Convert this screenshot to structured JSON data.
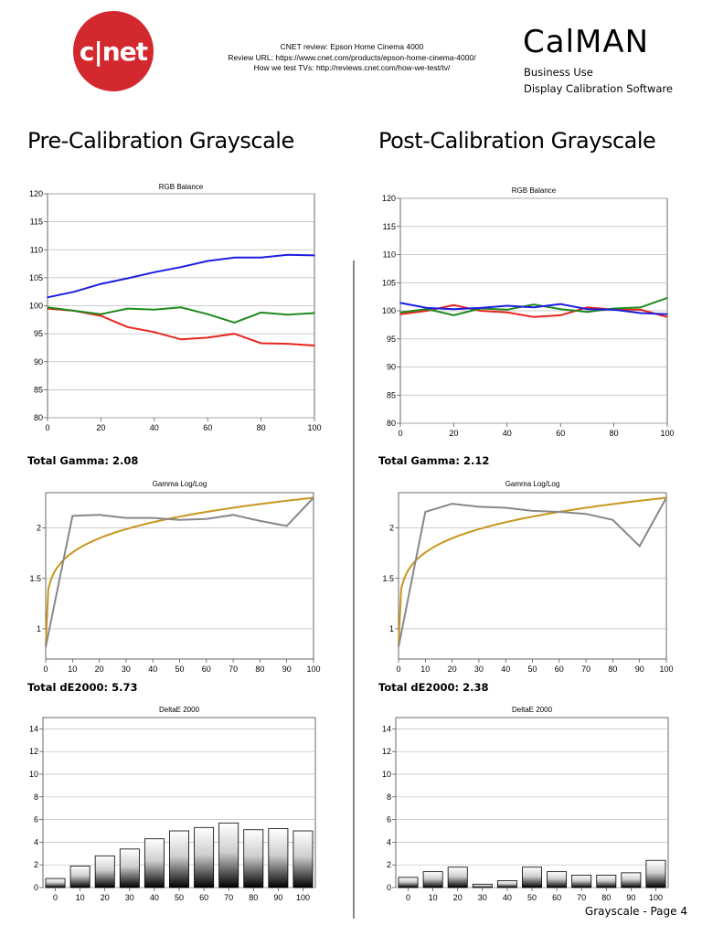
{
  "header": {
    "logo_text": "c|net",
    "review_line": "CNET review: Epson Home Cinema 4000",
    "review_url_line": "Review URL: https://www.cnet.com/products/epson-home-cinema-4000/",
    "how_we_test_line": "How we test TVs: http://reviews.cnet.com/how-we-test/tv/",
    "brand": "CalMAN",
    "brand_sub1": "Business Use",
    "brand_sub2": "Display Calibration Software"
  },
  "pre": {
    "title": "Pre-Calibration Grayscale",
    "gamma_total": "Total Gamma: 2.08",
    "de_total": "Total dE2000: 5.73"
  },
  "post": {
    "title": "Post-Calibration Grayscale",
    "gamma_total": "Total Gamma: 2.12",
    "de_total": "Total dE2000: 2.38"
  },
  "footer": {
    "page_label": "Grayscale - Page 4"
  },
  "colors": {
    "red": "#e8241c",
    "green": "#1e8a1e",
    "blue": "#1c1ce0",
    "gamma_target": "#c8961e",
    "gamma_measured": "#888888"
  },
  "chart_data": [
    {
      "id": "pre-rgb",
      "type": "line",
      "title": "RGB Balance",
      "x": [
        0,
        10,
        20,
        30,
        40,
        50,
        60,
        70,
        80,
        90,
        100
      ],
      "ylim": [
        80,
        120
      ],
      "xlim": [
        0,
        100
      ],
      "yticks": [
        80,
        85,
        90,
        95,
        100,
        105,
        110,
        115,
        120
      ],
      "xticks": [
        0,
        20,
        40,
        60,
        80,
        100
      ],
      "series": [
        {
          "color": "red",
          "values": [
            99.5,
            99.1,
            98.2,
            96.2,
            95.3,
            94.0,
            94.3,
            95.0,
            93.3,
            93.2,
            92.9
          ]
        },
        {
          "color": "green",
          "values": [
            99.7,
            99.1,
            98.5,
            99.5,
            99.3,
            99.7,
            98.5,
            97.0,
            98.8,
            98.4,
            98.7
          ]
        },
        {
          "color": "blue",
          "values": [
            101.5,
            102.5,
            103.9,
            104.9,
            106.0,
            106.9,
            108.0,
            108.6,
            108.6,
            109.1,
            109.0
          ]
        }
      ]
    },
    {
      "id": "post-rgb",
      "type": "line",
      "title": "RGB Balance",
      "x": [
        0,
        10,
        20,
        30,
        40,
        50,
        60,
        70,
        80,
        90,
        100
      ],
      "ylim": [
        80,
        120
      ],
      "xlim": [
        0,
        100
      ],
      "yticks": [
        80,
        85,
        90,
        95,
        100,
        105,
        110,
        115,
        120
      ],
      "xticks": [
        0,
        20,
        40,
        60,
        80,
        100
      ],
      "series": [
        {
          "color": "red",
          "values": [
            99.4,
            100.0,
            101.0,
            100.0,
            99.7,
            98.9,
            99.2,
            100.6,
            100.2,
            100.2,
            98.9
          ]
        },
        {
          "color": "green",
          "values": [
            99.7,
            100.3,
            99.2,
            100.4,
            100.2,
            101.1,
            100.3,
            99.8,
            100.4,
            100.6,
            102.3
          ]
        },
        {
          "color": "blue",
          "values": [
            101.4,
            100.5,
            100.3,
            100.5,
            100.9,
            100.6,
            101.2,
            100.3,
            100.2,
            99.6,
            99.4
          ]
        }
      ]
    },
    {
      "id": "pre-gamma",
      "type": "line",
      "title": "Gamma Log/Log",
      "x": [
        0,
        10,
        20,
        30,
        40,
        50,
        60,
        70,
        80,
        90,
        100
      ],
      "ylim": [
        0.7,
        2.35
      ],
      "xlim": [
        0,
        100
      ],
      "yticks": [
        1,
        1.5,
        2
      ],
      "xticks": [
        0,
        10,
        20,
        30,
        40,
        50,
        60,
        70,
        80,
        90,
        100
      ],
      "series": [
        {
          "color": "gamma_measured",
          "values": [
            0.82,
            2.12,
            2.13,
            2.1,
            2.1,
            2.08,
            2.09,
            2.13,
            2.07,
            2.02,
            2.3
          ]
        }
      ],
      "target_gamma": 2.3
    },
    {
      "id": "post-gamma",
      "type": "line",
      "title": "Gamma Log/Log",
      "x": [
        0,
        10,
        20,
        30,
        40,
        50,
        60,
        70,
        80,
        90,
        100
      ],
      "ylim": [
        0.7,
        2.35
      ],
      "xlim": [
        0,
        100
      ],
      "yticks": [
        1,
        1.5,
        2
      ],
      "xticks": [
        0,
        10,
        20,
        30,
        40,
        50,
        60,
        70,
        80,
        90,
        100
      ],
      "series": [
        {
          "color": "gamma_measured",
          "values": [
            0.82,
            2.16,
            2.24,
            2.21,
            2.2,
            2.17,
            2.16,
            2.14,
            2.08,
            1.82,
            2.3
          ]
        }
      ],
      "target_gamma": 2.3
    },
    {
      "id": "pre-de",
      "type": "bar",
      "title": "DeltaE 2000",
      "categories": [
        "0",
        "10",
        "20",
        "30",
        "40",
        "50",
        "60",
        "70",
        "80",
        "90",
        "100"
      ],
      "values": [
        0.8,
        1.9,
        2.8,
        3.4,
        4.3,
        5.0,
        5.3,
        5.7,
        5.1,
        5.2,
        5.0
      ],
      "ylim": [
        0,
        15
      ],
      "yticks": [
        0,
        2,
        4,
        6,
        8,
        10,
        12,
        14
      ]
    },
    {
      "id": "post-de",
      "type": "bar",
      "title": "DeltaE 2000",
      "categories": [
        "0",
        "10",
        "20",
        "30",
        "40",
        "50",
        "60",
        "70",
        "80",
        "90",
        "100"
      ],
      "values": [
        0.9,
        1.4,
        1.8,
        0.3,
        0.6,
        1.8,
        1.4,
        1.1,
        1.1,
        1.3,
        2.4
      ],
      "ylim": [
        0,
        15
      ],
      "yticks": [
        0,
        2,
        4,
        6,
        8,
        10,
        12,
        14
      ]
    }
  ]
}
